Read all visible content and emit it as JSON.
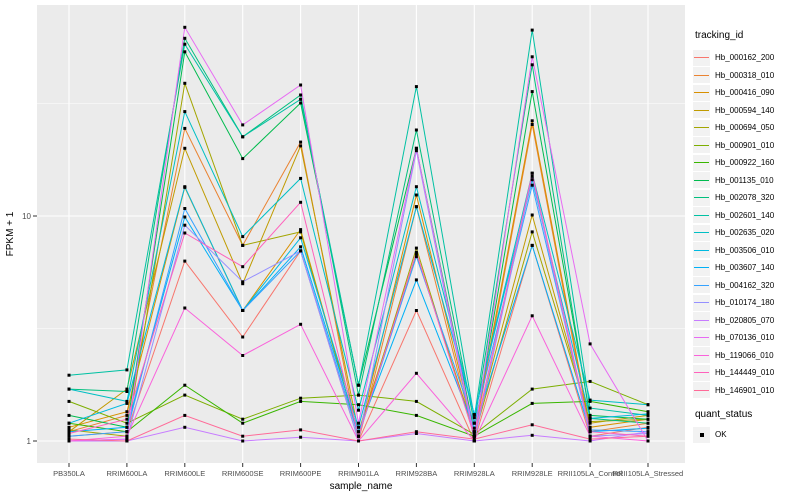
{
  "chart_data": {
    "type": "line",
    "title": "",
    "xlabel": "sample_name",
    "ylabel": "FPKM + 1",
    "y_scale": "log10",
    "ylim": [
      1,
      87
    ],
    "y_ticks": {
      "labels": [
        "10",
        "1"
      ],
      "values": [
        10,
        1
      ]
    },
    "y_major_gridlines": [
      1,
      10
    ],
    "y_minor_gridlines": [
      3.162,
      31.62
    ],
    "grid": "white major+minor gridlines on grey panel",
    "legend_position": "right",
    "point_marker": "black-square",
    "categories": [
      "PB350LA",
      "RRIM600LA",
      "RRIM600LE",
      "RRIM600SE",
      "RRIM600PE",
      "RRIM901LA",
      "RRIM928BA",
      "RRIM928LA",
      "RRIM928LE",
      "RRII105LA_Control",
      "RRII105LA_Stressed"
    ],
    "series": [
      {
        "name": "Hb_000162_200",
        "color": "#F8766D",
        "values": [
          1.05,
          1.1,
          6.3,
          2.9,
          7.0,
          1.0,
          3.8,
          1.0,
          7.4,
          1.05,
          1.15
        ]
      },
      {
        "name": "Hb_000318_010",
        "color": "#EA8331",
        "values": [
          1.1,
          1.3,
          24.5,
          7.4,
          21.3,
          1.0,
          11.0,
          1.05,
          25.5,
          1.1,
          1.2
        ]
      },
      {
        "name": "Hb_000416_090",
        "color": "#D89000",
        "values": [
          1.15,
          1.35,
          13.4,
          3.8,
          8.7,
          1.05,
          12.4,
          1.1,
          26.5,
          1.15,
          1.25
        ]
      },
      {
        "name": "Hb_000594_140",
        "color": "#C09B00",
        "values": [
          1.1,
          1.7,
          20.0,
          5.0,
          20.5,
          1.1,
          6.8,
          1.1,
          10.1,
          1.2,
          1.3
        ]
      },
      {
        "name": "Hb_000694_050",
        "color": "#A3A500",
        "values": [
          1.12,
          1.05,
          38.9,
          7.4,
          8.5,
          1.05,
          7.2,
          1.05,
          8.5,
          1.22,
          1.25
        ]
      },
      {
        "name": "Hb_000901_010",
        "color": "#7CAE00",
        "values": [
          1.5,
          1.2,
          1.6,
          1.25,
          1.55,
          1.6,
          1.5,
          1.07,
          1.7,
          1.84,
          1.45
        ]
      },
      {
        "name": "Hb_000922_160",
        "color": "#39B600",
        "values": [
          1.2,
          1.1,
          1.77,
          1.2,
          1.5,
          1.45,
          1.3,
          1.05,
          1.47,
          1.5,
          1.35
        ]
      },
      {
        "name": "Hb_001135_010",
        "color": "#00BB4E",
        "values": [
          1.3,
          1.15,
          53.7,
          18.0,
          31.8,
          1.77,
          20.0,
          1.1,
          35.7,
          1.3,
          1.25
        ]
      },
      {
        "name": "Hb_002078_320",
        "color": "#00BF7D",
        "values": [
          1.7,
          1.66,
          61.6,
          22.5,
          34.5,
          1.6,
          24.1,
          1.2,
          47.0,
          1.26,
          1.2
        ]
      },
      {
        "name": "Hb_002601_140",
        "color": "#00C1A3",
        "values": [
          1.96,
          2.07,
          58.0,
          22.5,
          33.0,
          1.77,
          37.6,
          1.27,
          67.0,
          1.4,
          1.3
        ]
      },
      {
        "name": "Hb_002635_020",
        "color": "#00BFC4",
        "values": [
          1.7,
          1.5,
          29.1,
          8.1,
          14.7,
          1.37,
          13.5,
          1.31,
          15.5,
          1.52,
          1.45
        ]
      },
      {
        "name": "Hb_003506_010",
        "color": "#00BAE0",
        "values": [
          1.2,
          1.47,
          13.5,
          3.8,
          8.0,
          1.15,
          11.0,
          1.31,
          14.5,
          1.26,
          1.32
        ]
      },
      {
        "name": "Hb_003607_140",
        "color": "#00B0F6",
        "values": [
          1.1,
          1.15,
          9.9,
          3.8,
          7.3,
          1.1,
          5.2,
          1.14,
          7.4,
          1.1,
          1.14
        ]
      },
      {
        "name": "Hb_004162_320",
        "color": "#35A2FF",
        "values": [
          1.05,
          1.1,
          10.8,
          3.8,
          7.0,
          1.05,
          6.6,
          1.2,
          13.7,
          1.12,
          1.1
        ]
      },
      {
        "name": "Hb_010174_180",
        "color": "#9590FF",
        "values": [
          1.0,
          1.02,
          9.1,
          5.1,
          7.0,
          1.0,
          19.5,
          1.0,
          15.0,
          1.05,
          1.08
        ]
      },
      {
        "name": "Hb_020805_070",
        "color": "#C77CFF",
        "values": [
          1.0,
          1.0,
          1.15,
          1.0,
          1.04,
          1.0,
          1.08,
          1.0,
          1.06,
          1.0,
          1.1
        ]
      },
      {
        "name": "Hb_070136_010",
        "color": "#E76BF3",
        "values": [
          1.0,
          1.02,
          69.0,
          25.4,
          38.2,
          1.2,
          20.0,
          1.05,
          51.0,
          2.7,
          1.0
        ]
      },
      {
        "name": "Hb_119066_010",
        "color": "#FA62DB",
        "values": [
          1.0,
          1.05,
          3.9,
          2.4,
          3.3,
          1.0,
          2.0,
          1.0,
          3.6,
          1.05,
          1.0
        ]
      },
      {
        "name": "Hb_144449_010",
        "color": "#FF62BC",
        "values": [
          1.08,
          1.25,
          8.4,
          5.95,
          11.5,
          1.05,
          6.9,
          1.05,
          15.5,
          1.1,
          1.05
        ]
      },
      {
        "name": "Hb_146901_010",
        "color": "#FF6A98",
        "values": [
          1.02,
          1.0,
          1.3,
          1.05,
          1.12,
          1.0,
          1.1,
          1.02,
          1.18,
          1.02,
          1.05
        ]
      }
    ]
  },
  "legend": {
    "tracking_title": "tracking_id",
    "quant_title": "quant_status",
    "quant_items": [
      {
        "label": "OK",
        "symbol": "black-square"
      }
    ]
  },
  "colors": {
    "page_bg": "#FFFFFF",
    "panel_bg": "#EBEBEB",
    "gridline": "#FFFFFF",
    "tick_label": "#4D4D4D",
    "tick_mark": "#333333",
    "point": "#000000",
    "legend_key_bg": "#F2F2F2"
  }
}
